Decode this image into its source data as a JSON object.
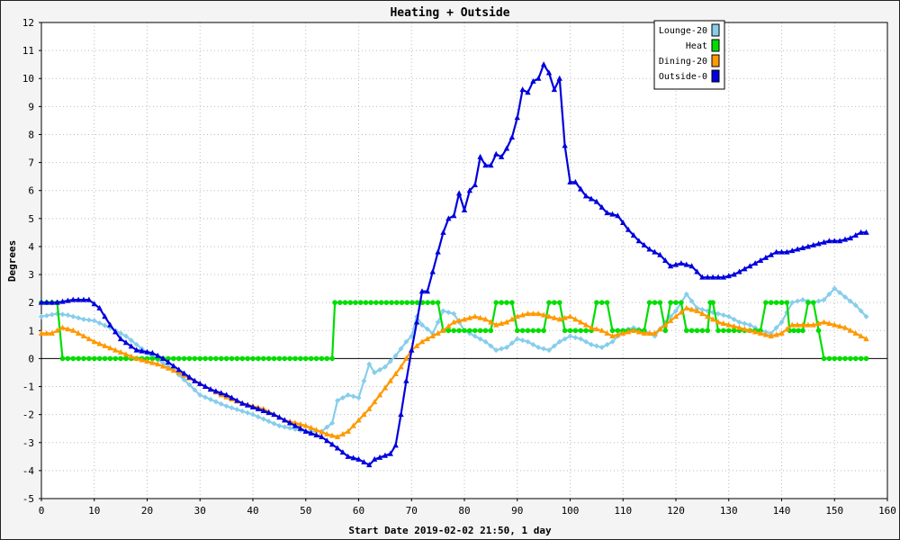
{
  "chart_data": {
    "type": "line",
    "title": "Heating + Outside",
    "xlabel": "Start Date 2019-02-02 21:50, 1 day",
    "ylabel": "Degrees",
    "xlim": [
      0,
      160
    ],
    "ylim": [
      -5,
      12
    ],
    "xticks": [
      0,
      10,
      20,
      30,
      40,
      50,
      60,
      70,
      80,
      90,
      100,
      110,
      120,
      130,
      140,
      150,
      160
    ],
    "yticks": [
      -5,
      -4,
      -3,
      -2,
      -1,
      0,
      1,
      2,
      3,
      4,
      5,
      6,
      7,
      8,
      9,
      10,
      11,
      12
    ],
    "grid": true,
    "legend_position": "top-right",
    "series": [
      {
        "name": "Lounge-20",
        "color": "#87CEEB",
        "marker": "diamond",
        "points": [
          [
            0,
            1.5
          ],
          [
            3,
            1.6
          ],
          [
            5,
            1.55
          ],
          [
            8,
            1.4
          ],
          [
            10,
            1.35
          ],
          [
            13,
            1.1
          ],
          [
            16,
            0.8
          ],
          [
            20,
            0.2
          ],
          [
            25,
            -0.4
          ],
          [
            30,
            -1.3
          ],
          [
            35,
            -1.7
          ],
          [
            40,
            -2.0
          ],
          [
            45,
            -2.4
          ],
          [
            50,
            -2.6
          ],
          [
            53,
            -2.6
          ],
          [
            55,
            -2.3
          ],
          [
            56,
            -1.5
          ],
          [
            58,
            -1.3
          ],
          [
            60,
            -1.4
          ],
          [
            61,
            -0.8
          ],
          [
            62,
            -0.2
          ],
          [
            63,
            -0.5
          ],
          [
            65,
            -0.3
          ],
          [
            67,
            0.1
          ],
          [
            69,
            0.6
          ],
          [
            70,
            0.8
          ],
          [
            71,
            1.5
          ],
          [
            72,
            1.2
          ],
          [
            74,
            0.9
          ],
          [
            76,
            1.7
          ],
          [
            78,
            1.6
          ],
          [
            80,
            1.0
          ],
          [
            82,
            0.8
          ],
          [
            84,
            0.6
          ],
          [
            86,
            0.3
          ],
          [
            88,
            0.4
          ],
          [
            90,
            0.7
          ],
          [
            92,
            0.6
          ],
          [
            94,
            0.4
          ],
          [
            96,
            0.3
          ],
          [
            98,
            0.6
          ],
          [
            100,
            0.8
          ],
          [
            102,
            0.7
          ],
          [
            104,
            0.5
          ],
          [
            106,
            0.4
          ],
          [
            108,
            0.6
          ],
          [
            110,
            1.0
          ],
          [
            112,
            1.1
          ],
          [
            114,
            1.0
          ],
          [
            116,
            0.8
          ],
          [
            118,
            1.3
          ],
          [
            120,
            1.7
          ],
          [
            122,
            2.3
          ],
          [
            124,
            1.8
          ],
          [
            126,
            1.7
          ],
          [
            128,
            1.6
          ],
          [
            130,
            1.5
          ],
          [
            132,
            1.3
          ],
          [
            134,
            1.2
          ],
          [
            136,
            1.0
          ],
          [
            138,
            0.9
          ],
          [
            140,
            1.3
          ],
          [
            142,
            2.0
          ],
          [
            144,
            2.1
          ],
          [
            146,
            2.0
          ],
          [
            148,
            2.1
          ],
          [
            150,
            2.5
          ],
          [
            152,
            2.2
          ],
          [
            154,
            1.9
          ],
          [
            156,
            1.5
          ]
        ]
      },
      {
        "name": "Heat",
        "color": "#00DD00",
        "marker": "circle",
        "points": [
          [
            0,
            2
          ],
          [
            3,
            2
          ],
          [
            4,
            0
          ],
          [
            55,
            0
          ],
          [
            55.5,
            2
          ],
          [
            75,
            2
          ],
          [
            76,
            1
          ],
          [
            85,
            1
          ],
          [
            86,
            2
          ],
          [
            89,
            2
          ],
          [
            90,
            1
          ],
          [
            95,
            1
          ],
          [
            96,
            2
          ],
          [
            98,
            2
          ],
          [
            99,
            1
          ],
          [
            104,
            1
          ],
          [
            105,
            2
          ],
          [
            107,
            2
          ],
          [
            108,
            1
          ],
          [
            114,
            1
          ],
          [
            115,
            2
          ],
          [
            117,
            2
          ],
          [
            118,
            1
          ],
          [
            119,
            2
          ],
          [
            121,
            2
          ],
          [
            122,
            1
          ],
          [
            126,
            1
          ],
          [
            126.5,
            2
          ],
          [
            127,
            2
          ],
          [
            128,
            1
          ],
          [
            136,
            1
          ],
          [
            137,
            2
          ],
          [
            141,
            2
          ],
          [
            141.5,
            1
          ],
          [
            144,
            1
          ],
          [
            145,
            2
          ],
          [
            146,
            2
          ],
          [
            148,
            0
          ],
          [
            156,
            0
          ]
        ]
      },
      {
        "name": "Dining-20",
        "color": "#FF9900",
        "marker": "triangle",
        "points": [
          [
            0,
            0.9
          ],
          [
            2,
            0.9
          ],
          [
            4,
            1.1
          ],
          [
            6,
            1.0
          ],
          [
            8,
            0.8
          ],
          [
            10,
            0.6
          ],
          [
            14,
            0.3
          ],
          [
            18,
            0.0
          ],
          [
            22,
            -0.2
          ],
          [
            26,
            -0.5
          ],
          [
            30,
            -0.9
          ],
          [
            34,
            -1.3
          ],
          [
            38,
            -1.6
          ],
          [
            42,
            -1.8
          ],
          [
            46,
            -2.2
          ],
          [
            50,
            -2.4
          ],
          [
            54,
            -2.7
          ],
          [
            56,
            -2.8
          ],
          [
            58,
            -2.6
          ],
          [
            60,
            -2.2
          ],
          [
            62,
            -1.8
          ],
          [
            64,
            -1.3
          ],
          [
            66,
            -0.8
          ],
          [
            68,
            -0.3
          ],
          [
            70,
            0.3
          ],
          [
            72,
            0.6
          ],
          [
            74,
            0.8
          ],
          [
            76,
            1.0
          ],
          [
            78,
            1.3
          ],
          [
            80,
            1.4
          ],
          [
            82,
            1.5
          ],
          [
            84,
            1.4
          ],
          [
            86,
            1.2
          ],
          [
            88,
            1.3
          ],
          [
            90,
            1.5
          ],
          [
            92,
            1.6
          ],
          [
            94,
            1.6
          ],
          [
            96,
            1.5
          ],
          [
            98,
            1.4
          ],
          [
            100,
            1.5
          ],
          [
            102,
            1.3
          ],
          [
            104,
            1.1
          ],
          [
            106,
            1.0
          ],
          [
            108,
            0.8
          ],
          [
            110,
            0.9
          ],
          [
            112,
            1.0
          ],
          [
            114,
            0.9
          ],
          [
            116,
            0.9
          ],
          [
            118,
            1.2
          ],
          [
            120,
            1.5
          ],
          [
            122,
            1.8
          ],
          [
            124,
            1.7
          ],
          [
            126,
            1.5
          ],
          [
            128,
            1.3
          ],
          [
            130,
            1.2
          ],
          [
            132,
            1.1
          ],
          [
            134,
            1.0
          ],
          [
            136,
            0.9
          ],
          [
            138,
            0.8
          ],
          [
            140,
            0.9
          ],
          [
            142,
            1.2
          ],
          [
            144,
            1.2
          ],
          [
            146,
            1.2
          ],
          [
            148,
            1.3
          ],
          [
            150,
            1.2
          ],
          [
            152,
            1.1
          ],
          [
            154,
            0.9
          ],
          [
            156,
            0.7
          ]
        ]
      },
      {
        "name": "Outside-0",
        "color": "#0000DD",
        "marker": "triangle",
        "points": [
          [
            0,
            2.0
          ],
          [
            3,
            2.0
          ],
          [
            6,
            2.1
          ],
          [
            9,
            2.1
          ],
          [
            11,
            1.8
          ],
          [
            13,
            1.2
          ],
          [
            15,
            0.7
          ],
          [
            18,
            0.3
          ],
          [
            21,
            0.2
          ],
          [
            23,
            0.0
          ],
          [
            26,
            -0.4
          ],
          [
            29,
            -0.8
          ],
          [
            32,
            -1.1
          ],
          [
            35,
            -1.3
          ],
          [
            38,
            -1.6
          ],
          [
            41,
            -1.8
          ],
          [
            44,
            -2.0
          ],
          [
            47,
            -2.3
          ],
          [
            50,
            -2.6
          ],
          [
            53,
            -2.8
          ],
          [
            56,
            -3.2
          ],
          [
            58,
            -3.5
          ],
          [
            60,
            -3.6
          ],
          [
            62,
            -3.8
          ],
          [
            63,
            -3.6
          ],
          [
            66,
            -3.4
          ],
          [
            67,
            -3.1
          ],
          [
            68,
            -2.0
          ],
          [
            69,
            -0.8
          ],
          [
            70,
            0.3
          ],
          [
            71,
            1.3
          ],
          [
            72,
            2.4
          ],
          [
            73,
            2.4
          ],
          [
            74,
            3.1
          ],
          [
            75,
            3.8
          ],
          [
            76,
            4.5
          ],
          [
            77,
            5.0
          ],
          [
            78,
            5.1
          ],
          [
            79,
            5.9
          ],
          [
            80,
            5.3
          ],
          [
            81,
            6.0
          ],
          [
            82,
            6.2
          ],
          [
            83,
            7.2
          ],
          [
            84,
            6.9
          ],
          [
            85,
            6.9
          ],
          [
            86,
            7.3
          ],
          [
            87,
            7.2
          ],
          [
            88,
            7.5
          ],
          [
            89,
            7.9
          ],
          [
            90,
            8.6
          ],
          [
            91,
            9.6
          ],
          [
            92,
            9.5
          ],
          [
            93,
            9.9
          ],
          [
            94,
            10.0
          ],
          [
            95,
            10.5
          ],
          [
            96,
            10.2
          ],
          [
            97,
            9.6
          ],
          [
            98,
            10.0
          ],
          [
            99,
            7.6
          ],
          [
            100,
            6.3
          ],
          [
            101,
            6.3
          ],
          [
            103,
            5.8
          ],
          [
            105,
            5.6
          ],
          [
            107,
            5.2
          ],
          [
            109,
            5.1
          ],
          [
            111,
            4.6
          ],
          [
            113,
            4.2
          ],
          [
            115,
            3.9
          ],
          [
            117,
            3.7
          ],
          [
            119,
            3.3
          ],
          [
            121,
            3.4
          ],
          [
            123,
            3.3
          ],
          [
            125,
            2.9
          ],
          [
            127,
            2.9
          ],
          [
            129,
            2.9
          ],
          [
            131,
            3.0
          ],
          [
            133,
            3.2
          ],
          [
            135,
            3.4
          ],
          [
            137,
            3.6
          ],
          [
            139,
            3.8
          ],
          [
            141,
            3.8
          ],
          [
            143,
            3.9
          ],
          [
            145,
            4.0
          ],
          [
            147,
            4.1
          ],
          [
            149,
            4.2
          ],
          [
            151,
            4.2
          ],
          [
            153,
            4.3
          ],
          [
            155,
            4.5
          ],
          [
            156,
            4.5
          ]
        ]
      }
    ]
  }
}
